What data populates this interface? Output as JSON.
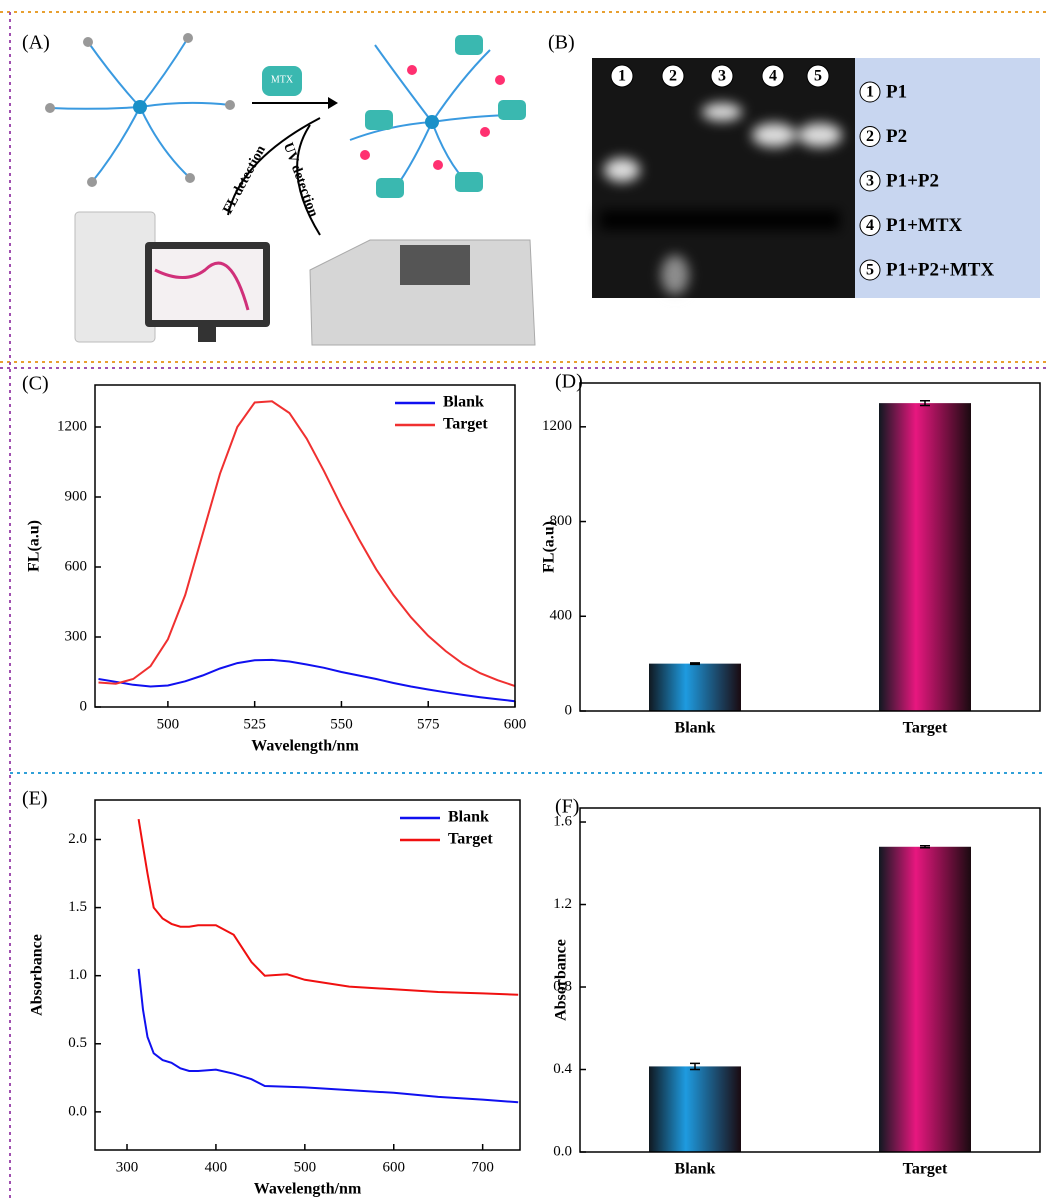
{
  "panels": {
    "A": {
      "label": "(A)",
      "reagent": "MTX",
      "detections": [
        "FL detection",
        "UV detection"
      ]
    },
    "B": {
      "label": "(B)",
      "lanes": [
        "1",
        "2",
        "3",
        "4",
        "5"
      ],
      "legend": [
        "P1",
        "P2",
        "P1+P2",
        "P1+MTX",
        "P1+P2+MTX"
      ]
    }
  },
  "chart_data": [
    {
      "type": "line",
      "title": "(C)",
      "x_label": "Wavelength/nm",
      "y_label": "FL(a.u)",
      "x": [
        480,
        485,
        490,
        495,
        500,
        505,
        510,
        515,
        520,
        525,
        530,
        535,
        540,
        545,
        550,
        555,
        560,
        565,
        570,
        575,
        580,
        585,
        590,
        595,
        600
      ],
      "series": [
        {
          "name": "Blank",
          "color": "#1010f0",
          "values": [
            120,
            108,
            95,
            88,
            92,
            110,
            135,
            165,
            188,
            200,
            202,
            195,
            182,
            168,
            150,
            135,
            120,
            103,
            88,
            75,
            63,
            52,
            42,
            33,
            25
          ]
        },
        {
          "name": "Target",
          "color": "#f03030",
          "values": [
            105,
            100,
            120,
            175,
            290,
            480,
            740,
            1000,
            1200,
            1305,
            1310,
            1260,
            1150,
            1010,
            860,
            720,
            590,
            480,
            385,
            305,
            240,
            185,
            145,
            115,
            90
          ]
        }
      ],
      "xlim": [
        479,
        600
      ],
      "ylim": [
        0,
        1380
      ],
      "xticks": [
        500,
        525,
        550,
        575,
        600
      ],
      "yticks": [
        0,
        300,
        600,
        900,
        1200
      ],
      "legend": "upper right"
    },
    {
      "type": "bar",
      "title": "(D)",
      "y_label": "FL(a.u)",
      "categories": [
        "Blank",
        "Target"
      ],
      "values": [
        200,
        1300
      ],
      "errors": [
        3,
        10
      ],
      "colors": [
        "#1e9be0",
        "#e8177f"
      ],
      "ylim": [
        0,
        1385
      ],
      "yticks": [
        0,
        400,
        800,
        1200
      ]
    },
    {
      "type": "line",
      "title": "(E)",
      "x_label": "Wavelength/nm",
      "y_label": "Absorbance",
      "x": [
        313,
        318,
        323,
        330,
        340,
        350,
        360,
        370,
        380,
        400,
        420,
        440,
        455,
        480,
        500,
        550,
        600,
        650,
        700,
        740
      ],
      "series": [
        {
          "name": "Blank",
          "color": "#1010f0",
          "values": [
            1.05,
            0.75,
            0.55,
            0.43,
            0.38,
            0.36,
            0.32,
            0.3,
            0.3,
            0.31,
            0.28,
            0.24,
            0.19,
            0.185,
            0.18,
            0.16,
            0.14,
            0.11,
            0.09,
            0.07
          ]
        },
        {
          "name": "Target",
          "color": "#f01010",
          "values": [
            2.15,
            1.95,
            1.75,
            1.5,
            1.42,
            1.38,
            1.36,
            1.36,
            1.37,
            1.37,
            1.3,
            1.1,
            1.0,
            1.01,
            0.97,
            0.92,
            0.9,
            0.88,
            0.87,
            0.86
          ]
        }
      ],
      "xlim": [
        264,
        742
      ],
      "ylim": [
        -0.28,
        2.29
      ],
      "xticks": [
        300,
        400,
        500,
        600,
        700
      ],
      "yticks": [
        {
          "value": 0,
          "label": "0.0"
        },
        {
          "value": 0.5,
          "label": "0.5"
        },
        {
          "value": 1,
          "label": "1.0"
        },
        {
          "value": 1.5,
          "label": "1.5"
        },
        {
          "value": 2,
          "label": "2.0"
        }
      ],
      "legend": "upper right"
    },
    {
      "type": "bar",
      "title": "(F)",
      "y_label": "Absorbance",
      "categories": [
        "Blank",
        "Target"
      ],
      "values": [
        0.415,
        1.48
      ],
      "errors": [
        0.015,
        0.005
      ],
      "colors": [
        "#1e9be0",
        "#e8177f"
      ],
      "ylim": [
        0,
        1.668
      ],
      "yticks": [
        {
          "value": 0,
          "label": "0.0"
        },
        {
          "value": 0.4,
          "label": "0.4"
        },
        {
          "value": 0.8,
          "label": "0.8"
        },
        {
          "value": 1.2,
          "label": "1.2"
        },
        {
          "value": 1.6,
          "label": "1.6"
        }
      ]
    }
  ]
}
